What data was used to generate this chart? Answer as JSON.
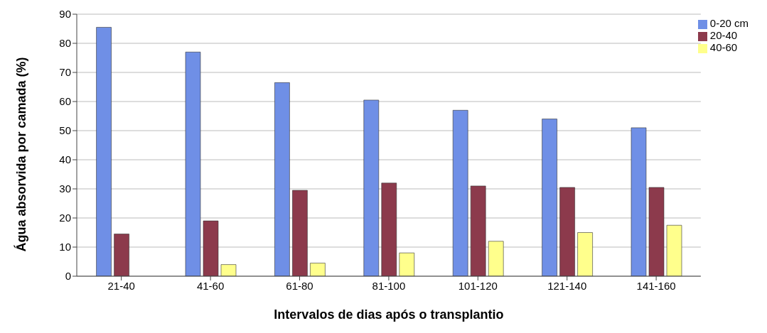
{
  "chart_data": {
    "type": "bar",
    "xlabel": "Intervalos de dias após o transplantio",
    "ylabel": "Água absorvida por camada (%)",
    "categories": [
      "21-40",
      "41-60",
      "61-80",
      "81-100",
      "101-120",
      "121-140",
      "141-160"
    ],
    "series": [
      {
        "name": "0-20 cm",
        "color": "#6f8fe6",
        "values": [
          85.5,
          77,
          66.5,
          60.5,
          57,
          54,
          51
        ]
      },
      {
        "name": "20-40",
        "color": "#8c3a4c",
        "values": [
          14.5,
          19,
          29.5,
          32,
          31,
          30.5,
          30.5
        ]
      },
      {
        "name": "40-60",
        "color": "#ffff8c",
        "values": [
          null,
          4,
          4.5,
          8,
          12,
          15,
          17.5
        ]
      }
    ],
    "ylim": [
      0,
      90
    ],
    "yticks": [
      0,
      10,
      20,
      30,
      40,
      50,
      60,
      70,
      80,
      90
    ],
    "grid": "y",
    "legend": "top right"
  }
}
